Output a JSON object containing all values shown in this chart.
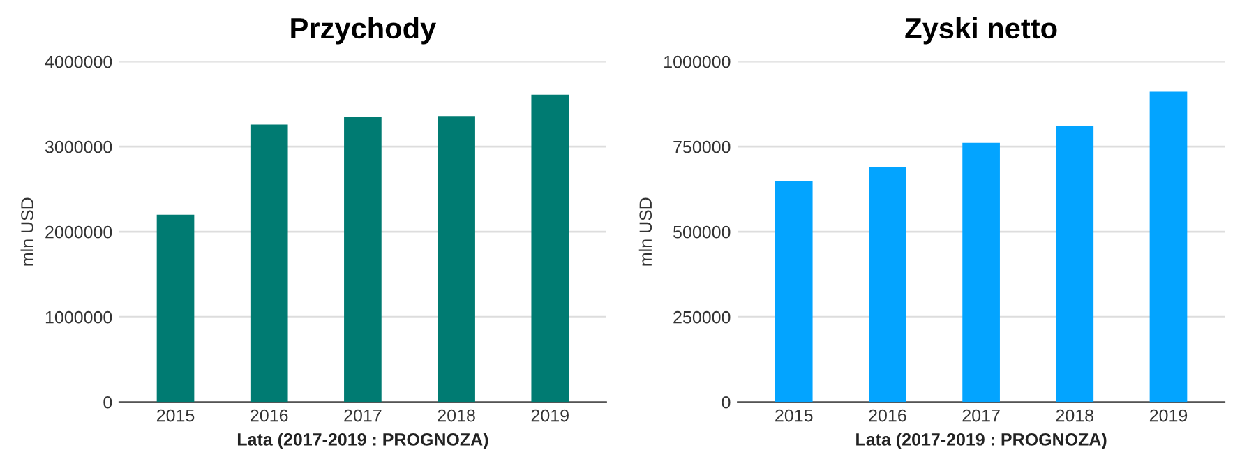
{
  "chart_data": [
    {
      "type": "bar",
      "title": "Przychody",
      "xlabel": "Lata (2017-2019 : PROGNOZA)",
      "ylabel": "mln USD",
      "categories": [
        "2015",
        "2016",
        "2017",
        "2018",
        "2019"
      ],
      "series": [
        {
          "color": "#007b72",
          "values": [
            2200000,
            3260000,
            3350000,
            3360000,
            3610000
          ]
        }
      ],
      "ylim": [
        0,
        4000000
      ],
      "yticks": [
        0,
        1000000,
        2000000,
        3000000,
        4000000
      ],
      "grid": "y"
    },
    {
      "type": "bar",
      "title": "Zyski netto",
      "xlabel": "Lata (2017-2019 : PROGNOZA)",
      "ylabel": "mln USD",
      "categories": [
        "2015",
        "2016",
        "2017",
        "2018",
        "2019"
      ],
      "series": [
        {
          "color": "#03a4ff",
          "values": [
            650000,
            690000,
            761000,
            811000,
            911000
          ]
        }
      ],
      "ylim": [
        0,
        1000000
      ],
      "yticks": [
        0,
        250000,
        500000,
        750000,
        1000000
      ],
      "grid": "y"
    }
  ]
}
